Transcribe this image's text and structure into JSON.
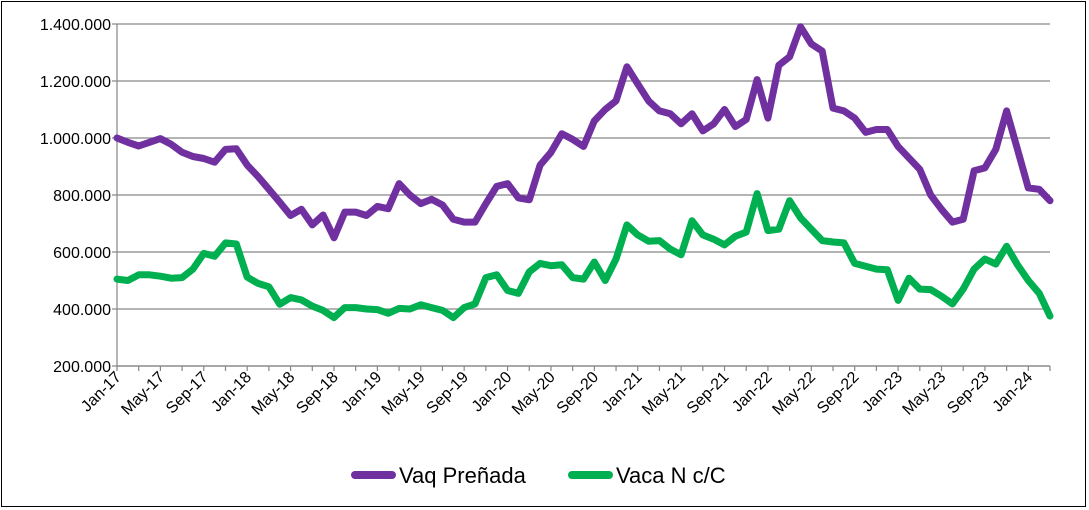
{
  "chart_data": {
    "type": "line",
    "title": "",
    "xlabel": "",
    "ylabel": "",
    "ylim": [
      200000,
      1400000
    ],
    "yticks": [
      200000,
      400000,
      600000,
      800000,
      1000000,
      1200000,
      1400000
    ],
    "ytick_labels": [
      "200.000",
      "400.000",
      "600.000",
      "800.000",
      "1.000.000",
      "1.200.000",
      "1.400.000"
    ],
    "x_start": "2017-01",
    "x_tick_labels": [
      "Jan-17",
      "May-17",
      "Sep-17",
      "Jan-18",
      "May-18",
      "Sep-18",
      "Jan-19",
      "May-19",
      "Sep-19",
      "Jan-20",
      "May-20",
      "Sep-20",
      "Jan-21",
      "May-21",
      "Sep-21",
      "Jan-22",
      "May-22",
      "Sep-22",
      "Jan-23",
      "May-23",
      "Sep-23",
      "Jan-24"
    ],
    "x_tick_step_months": 4,
    "grid": true,
    "legend_position": "bottom",
    "series": [
      {
        "name": "Vaq Preñada",
        "color": "#7030A0",
        "values": [
          1000000,
          985000,
          972000,
          985000,
          998000,
          978000,
          950000,
          935000,
          928000,
          915000,
          960000,
          962000,
          905000,
          865000,
          820000,
          775000,
          728000,
          750000,
          695000,
          730000,
          650000,
          740000,
          740000,
          728000,
          760000,
          752000,
          840000,
          800000,
          770000,
          785000,
          765000,
          715000,
          705000,
          705000,
          770000,
          830000,
          840000,
          790000,
          783000,
          905000,
          950000,
          1015000,
          995000,
          970000,
          1060000,
          1100000,
          1130000,
          1250000,
          1190000,
          1130000,
          1095000,
          1085000,
          1050000,
          1085000,
          1025000,
          1050000,
          1100000,
          1040000,
          1065000,
          1205000,
          1070000,
          1255000,
          1285000,
          1390000,
          1330000,
          1305000,
          1105000,
          1095000,
          1070000,
          1020000,
          1030000,
          1030000,
          970000,
          930000,
          890000,
          800000,
          750000,
          705000,
          715000,
          885000,
          895000,
          960000,
          1095000,
          960000,
          825000,
          820000,
          780000
        ]
      },
      {
        "name": "Vaca N c/C",
        "color": "#00B050",
        "values": [
          505000,
          500000,
          520000,
          520000,
          515000,
          508000,
          510000,
          540000,
          595000,
          585000,
          632000,
          628000,
          512000,
          490000,
          478000,
          417000,
          440000,
          432000,
          410000,
          395000,
          370000,
          405000,
          405000,
          400000,
          398000,
          385000,
          402000,
          400000,
          415000,
          405000,
          395000,
          370000,
          405000,
          418000,
          510000,
          520000,
          465000,
          455000,
          530000,
          560000,
          552000,
          555000,
          510000,
          505000,
          565000,
          500000,
          575000,
          695000,
          660000,
          638000,
          640000,
          610000,
          590000,
          710000,
          660000,
          645000,
          625000,
          655000,
          670000,
          805000,
          675000,
          680000,
          780000,
          720000,
          680000,
          640000,
          635000,
          632000,
          560000,
          550000,
          540000,
          538000,
          430000,
          508000,
          470000,
          468000,
          445000,
          418000,
          470000,
          540000,
          575000,
          558000,
          620000,
          555000,
          500000,
          455000,
          375000
        ]
      }
    ]
  }
}
